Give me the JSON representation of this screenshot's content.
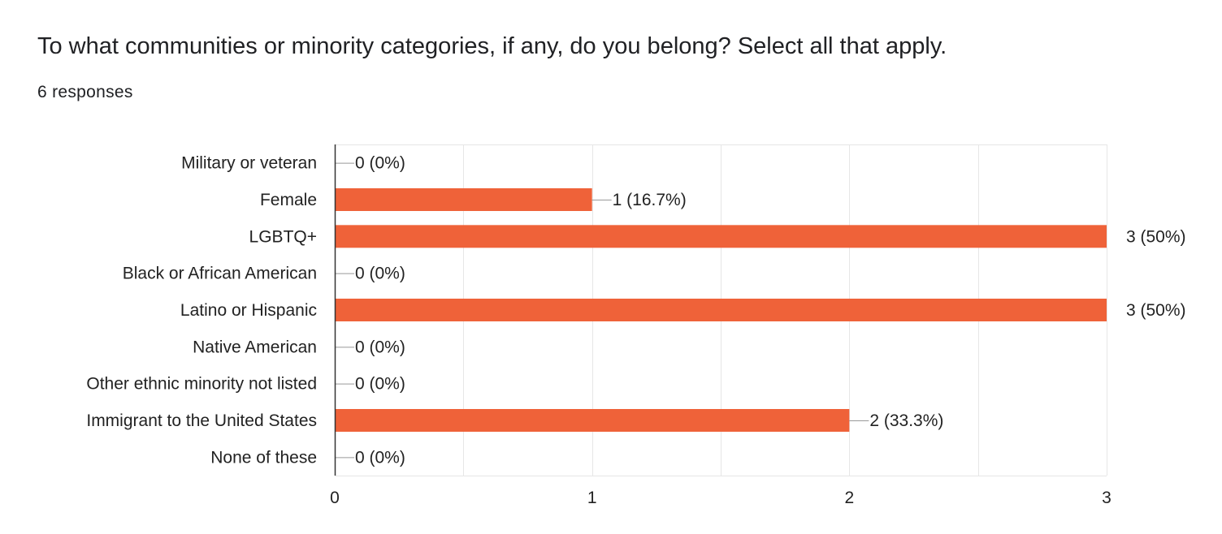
{
  "question": {
    "title": "To what communities or minority categories, if any, do you belong? Select all that apply.",
    "responses": "6 responses"
  },
  "colors": {
    "bar": "#ef6239",
    "grid": "#e6e6e6",
    "axis": "#333333",
    "text": "#222222"
  },
  "chart_data": {
    "type": "bar",
    "orientation": "horizontal",
    "categories": [
      "Military or veteran",
      "Female",
      "LGBTQ+",
      "Black or African American",
      "Latino or Hispanic",
      "Native American",
      "Other ethnic minority not listed",
      "Immigrant to the United States",
      "None of these"
    ],
    "values": [
      0,
      1,
      3,
      0,
      3,
      0,
      0,
      2,
      0
    ],
    "data_labels": [
      "0 (0%)",
      "1 (16.7%)",
      "3 (50%)",
      "0 (0%)",
      "3 (50%)",
      "0 (0%)",
      "0 (0%)",
      "2 (33.3%)",
      "0 (0%)"
    ],
    "xlim": [
      0,
      3
    ],
    "xticks": [
      "0",
      "1",
      "2",
      "3"
    ],
    "grid": true,
    "legend": false
  }
}
